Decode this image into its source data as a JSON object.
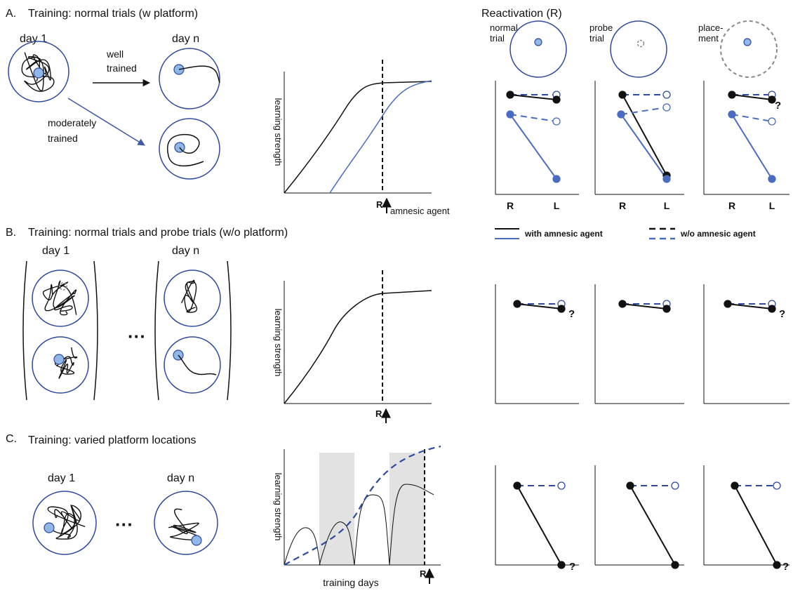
{
  "panels": [
    {
      "label": "A.",
      "title": "Training: normal trials (w platform)",
      "days": [
        "day 1",
        "day n"
      ],
      "arrow_labels": [
        [
          "well",
          "trained"
        ],
        [
          "moderately",
          "trained"
        ]
      ],
      "y_label": "learning strength",
      "reactivation_marker": "R",
      "agent_label": "amnesic agent"
    },
    {
      "label": "B.",
      "title": "Training: normal trials and probe trials (w/o platform)",
      "days": [
        "day 1",
        "day n"
      ],
      "ellipsis": "···",
      "y_label": "learning strength",
      "reactivation_marker": "R"
    },
    {
      "label": "C.",
      "title": "Training: varied platform locations",
      "days": [
        "day 1",
        "day n"
      ],
      "ellipsis": "···",
      "y_label": "learning strength",
      "x_label": "training days",
      "reactivation_marker": "R"
    }
  ],
  "reactivation": {
    "title": "Reactivation (R)",
    "conditions": [
      [
        "normal",
        "trial"
      ],
      [
        "probe",
        "trial"
      ],
      [
        "place-",
        "ment"
      ]
    ],
    "x_categories": [
      "R",
      "L"
    ],
    "unknown_mark": "?",
    "legend": [
      "with amnesic agent",
      "w/o amnesic agent"
    ]
  }
}
